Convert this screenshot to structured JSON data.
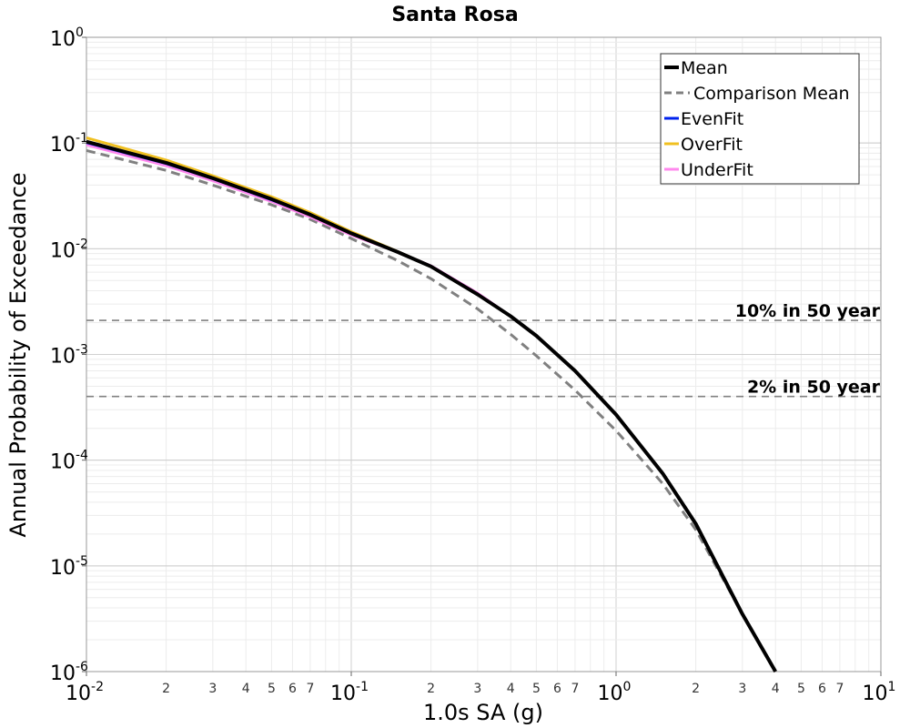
{
  "chart_data": {
    "type": "line",
    "title": "Santa Rosa",
    "xlabel": "1.0s SA (g)",
    "ylabel": "Annual Probability of Exceedance",
    "xscale": "log",
    "yscale": "log",
    "xlim": [
      0.01,
      10
    ],
    "ylim": [
      1e-06,
      1
    ],
    "grid": true,
    "legend_position": "top-right",
    "x_major_ticks": [
      {
        "base": "10",
        "exp": "-2"
      },
      {
        "base": "10",
        "exp": "-1"
      },
      {
        "base": "10",
        "exp": "0"
      },
      {
        "base": "10",
        "exp": "1"
      }
    ],
    "y_major_ticks": [
      {
        "base": "10",
        "exp": "0"
      },
      {
        "base": "10",
        "exp": "-1"
      },
      {
        "base": "10",
        "exp": "-2"
      },
      {
        "base": "10",
        "exp": "-3"
      },
      {
        "base": "10",
        "exp": "-4"
      },
      {
        "base": "10",
        "exp": "-5"
      },
      {
        "base": "10",
        "exp": "-6"
      }
    ],
    "x_minor_tick_labels": [
      "2",
      "3",
      "4",
      "5",
      "6",
      "7"
    ],
    "reference_lines": [
      {
        "label": "10% in 50 year",
        "y": 0.0021,
        "color": "#808080"
      },
      {
        "label": "2% in 50 year",
        "y": 0.0004,
        "color": "#808080"
      }
    ],
    "series": [
      {
        "name": "Comparison Mean",
        "color": "#808080",
        "dashed": true,
        "x": [
          0.01,
          0.02,
          0.03,
          0.05,
          0.07,
          0.1,
          0.15,
          0.2,
          0.3,
          0.4,
          0.5,
          0.7,
          1.0,
          1.5,
          2.0,
          3.0,
          4.0
        ],
        "y": [
          0.085,
          0.055,
          0.04,
          0.026,
          0.019,
          0.0125,
          0.0077,
          0.0052,
          0.0027,
          0.00155,
          0.00097,
          0.00046,
          0.00019,
          6e-05,
          2.2e-05,
          3.5e-06,
          1e-06
        ]
      },
      {
        "name": "UnderFit",
        "color": "#ff88ee",
        "dashed": false,
        "x": [
          0.01,
          0.02,
          0.03,
          0.05,
          0.07,
          0.1,
          0.15,
          0.2,
          0.3,
          0.4,
          0.5,
          0.7,
          1.0,
          1.5,
          2.0,
          3.0,
          4.0
        ],
        "y": [
          0.096,
          0.061,
          0.044,
          0.028,
          0.02,
          0.0135,
          0.0093,
          0.0069,
          0.0038,
          0.0023,
          0.0015,
          0.0007,
          0.00027,
          7.5e-05,
          2.5e-05,
          3.5e-06,
          1e-06
        ]
      },
      {
        "name": "EvenFit",
        "color": "#0022ee",
        "dashed": false,
        "x": [
          0.01,
          0.02,
          0.03,
          0.05,
          0.07,
          0.1,
          0.15,
          0.2,
          0.3,
          0.4,
          0.5,
          0.7,
          1.0,
          1.5,
          2.0,
          3.0,
          4.0
        ],
        "y": [
          0.101,
          0.064,
          0.046,
          0.029,
          0.021,
          0.014,
          0.0093,
          0.0068,
          0.0037,
          0.0023,
          0.0015,
          0.0007,
          0.00027,
          7.5e-05,
          2.5e-05,
          3.5e-06,
          1e-06
        ]
      },
      {
        "name": "OverFit",
        "color": "#f0c020",
        "dashed": false,
        "x": [
          0.01,
          0.02,
          0.03,
          0.05,
          0.07,
          0.1,
          0.15,
          0.2,
          0.3,
          0.4,
          0.5,
          0.7,
          1.0,
          1.5,
          2.0,
          3.0,
          4.0
        ],
        "y": [
          0.112,
          0.069,
          0.049,
          0.031,
          0.022,
          0.0145,
          0.0094,
          0.0068,
          0.0037,
          0.0023,
          0.0015,
          0.0007,
          0.00027,
          7.5e-05,
          2.5e-05,
          3.5e-06,
          1e-06
        ]
      },
      {
        "name": "Mean",
        "color": "#000000",
        "dashed": false,
        "x": [
          0.01,
          0.02,
          0.03,
          0.05,
          0.07,
          0.1,
          0.15,
          0.2,
          0.3,
          0.4,
          0.5,
          0.7,
          1.0,
          1.5,
          2.0,
          3.0,
          4.0
        ],
        "y": [
          0.103,
          0.065,
          0.0465,
          0.0295,
          0.021,
          0.014,
          0.0093,
          0.0068,
          0.0037,
          0.0023,
          0.0015,
          0.0007,
          0.00027,
          7.5e-05,
          2.5e-05,
          3.5e-06,
          1e-06
        ]
      }
    ],
    "legend_order": [
      "Mean",
      "Comparison Mean",
      "EvenFit",
      "OverFit",
      "UnderFit"
    ]
  }
}
